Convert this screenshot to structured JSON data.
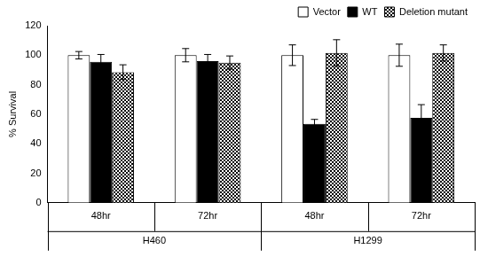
{
  "chart_data": {
    "type": "bar",
    "categories": [
      "48hr",
      "72hr",
      "48hr",
      "72hr"
    ],
    "groups": [
      "H460",
      "H460",
      "H1299",
      "H1299"
    ],
    "y_label": "% Survival",
    "ylim": [
      0,
      120
    ],
    "yticks": [
      0,
      20,
      40,
      60,
      80,
      100,
      120
    ],
    "grid": false,
    "legend": "top-right",
    "series": [
      {
        "name": "Vector",
        "color": "#ffffff",
        "values": [
          100,
          100,
          100,
          100
        ],
        "errors": [
          2.5,
          4.5,
          7,
          7.5
        ]
      },
      {
        "name": "WT",
        "color": "#000000",
        "values": [
          95.5,
          96,
          53.5,
          57.5
        ],
        "errors": [
          5,
          4.5,
          3,
          9
        ]
      },
      {
        "name": "Deletion mutant",
        "color": "#000000",
        "marker": "hatch",
        "values": [
          88.5,
          95,
          101.5,
          101.5
        ],
        "errors": [
          5,
          4.5,
          9,
          5.5
        ]
      }
    ]
  }
}
